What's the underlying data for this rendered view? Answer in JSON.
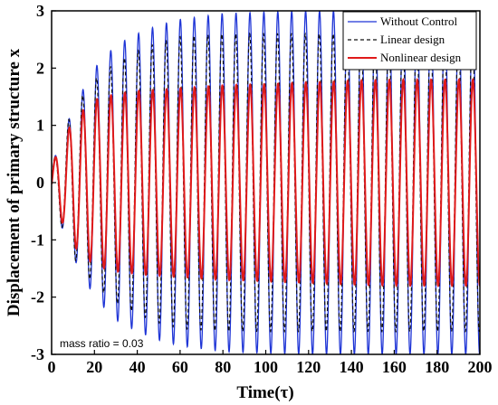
{
  "chart_data": {
    "type": "line",
    "xlabel": "Time(τ)",
    "ylabel": "Displacement of primary structure x",
    "xlim": [
      0,
      200
    ],
    "ylim": [
      -3,
      3
    ],
    "xticks": [
      0,
      20,
      40,
      60,
      80,
      100,
      120,
      140,
      160,
      180,
      200
    ],
    "yticks": [
      -3,
      -2,
      -1,
      0,
      1,
      2,
      3
    ],
    "grid": false,
    "legend_position": "top-right",
    "annotation": "mass ratio = 0.03",
    "oscillation_period": 6.5,
    "series": [
      {
        "name": "Without Control",
        "color": "#1f35d6",
        "style": "solid",
        "envelope": {
          "t": [
            0,
            10,
            20,
            30,
            40,
            50,
            60,
            80,
            100,
            120,
            140,
            160,
            180,
            200
          ],
          "amp": [
            0.3,
            1.3,
            2.0,
            2.4,
            2.6,
            2.75,
            2.85,
            2.95,
            2.98,
            3.0,
            3.0,
            3.0,
            3.0,
            3.0
          ]
        }
      },
      {
        "name": "Linear design",
        "color": "#111111",
        "style": "dashed",
        "envelope": {
          "t": [
            0,
            10,
            20,
            30,
            40,
            50,
            60,
            80,
            100,
            120,
            140,
            160,
            180,
            200
          ],
          "amp": [
            0.3,
            1.3,
            1.8,
            2.1,
            2.3,
            2.45,
            2.55,
            2.6,
            2.6,
            2.6,
            2.6,
            2.6,
            2.6,
            2.6
          ]
        }
      },
      {
        "name": "Nonlinear design",
        "color": "#e01a1a",
        "style": "solid",
        "envelope": {
          "t": [
            0,
            10,
            20,
            30,
            40,
            60,
            80,
            100,
            120,
            140,
            160,
            180,
            200
          ],
          "amp": [
            0.3,
            1.1,
            1.45,
            1.55,
            1.6,
            1.65,
            1.7,
            1.72,
            1.75,
            1.78,
            1.8,
            1.8,
            1.8
          ]
        }
      }
    ]
  }
}
